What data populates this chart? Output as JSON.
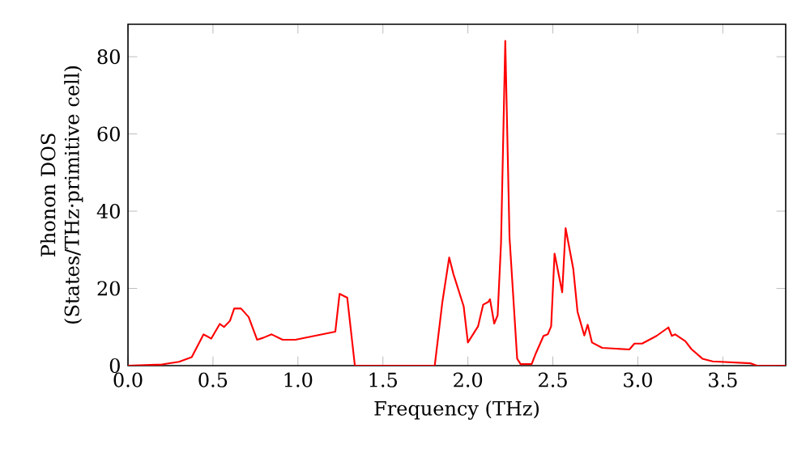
{
  "chart_data": {
    "type": "line",
    "xlabel": "Frequency (THz)",
    "ylabel": "Phonon DOS (States/THz·primitive cell)",
    "x": [
      0,
      0.2,
      0.3,
      0.375,
      0.445,
      0.49,
      0.54,
      0.565,
      0.6,
      0.625,
      0.665,
      0.71,
      0.76,
      0.795,
      0.845,
      0.91,
      0.985,
      1.22,
      1.245,
      1.29,
      1.335,
      1.805,
      1.85,
      1.89,
      1.915,
      1.975,
      2.0,
      2.06,
      2.09,
      2.12,
      2.13,
      2.155,
      2.175,
      2.195,
      2.22,
      2.245,
      2.29,
      2.31,
      2.375,
      2.4,
      2.445,
      2.47,
      2.49,
      2.51,
      2.555,
      2.575,
      2.62,
      2.645,
      2.685,
      2.705,
      2.73,
      2.79,
      2.95,
      2.98,
      3.025,
      3.11,
      3.18,
      3.2,
      3.22,
      3.28,
      3.315,
      3.38,
      3.44,
      3.665,
      3.7,
      3.87
    ],
    "series": [
      {
        "color": "#ff0000",
        "values": [
          0,
          0.3,
          1,
          2.2,
          8.1,
          7,
          10.8,
          10,
          11.6,
          14.8,
          14.8,
          12.6,
          6.7,
          7.2,
          8.1,
          6.7,
          6.7,
          8.8,
          18.6,
          17.6,
          0,
          0,
          16.5,
          28,
          23.7,
          15.4,
          6,
          10.2,
          15.8,
          16.5,
          17.2,
          10.9,
          13,
          31.8,
          84.1,
          33.2,
          1.8,
          0.4,
          0.4,
          3.2,
          7.7,
          8.1,
          10.2,
          29,
          19,
          35.6,
          25.1,
          14,
          7.8,
          10.6,
          6,
          4.6,
          4.2,
          5.7,
          5.7,
          7.7,
          9.9,
          7.7,
          8.1,
          6.3,
          4.3,
          1.8,
          1.1,
          0.6,
          0,
          0
        ]
      }
    ],
    "xlim": [
      0,
      3.87
    ],
    "ylim": [
      0,
      88.4
    ],
    "xticks": [
      {
        "value": 0,
        "label": "0.0"
      },
      0.5,
      {
        "value": 1,
        "label": "1.0"
      },
      1.5,
      {
        "value": 2,
        "label": "2.0"
      },
      2.5,
      {
        "value": 3,
        "label": "3.0"
      },
      3.5
    ],
    "yticks": [
      0,
      20,
      40,
      60,
      80
    ]
  }
}
